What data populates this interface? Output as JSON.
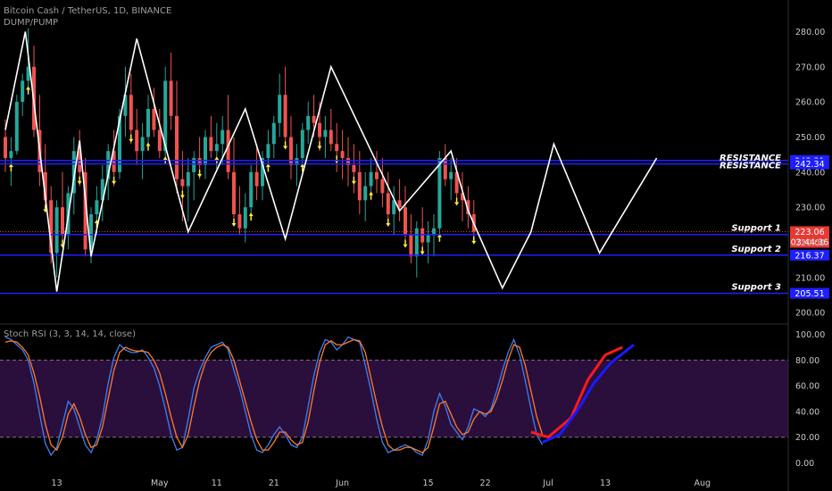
{
  "header": {
    "symbol_line": "Bitcoin Cash / TetherUS, 1D, BINANCE",
    "indicator_name": "DUMP/PUMP"
  },
  "rsi_panel": {
    "title": "Stoch RSI (3, 3, 14, 14, close)"
  },
  "colors": {
    "background": "#000000",
    "bull_candle": "#26a69a",
    "bear_candle": "#ef5350",
    "zigzag": "#ffffff",
    "level_line": "#1e1eff",
    "level_tag": "#1e1eff",
    "current_price_tag": "#e53935",
    "arrow": "#ffeb3b",
    "projection": "#ffffff",
    "k_line": "#3d7ff0",
    "d_line": "#ff7a29",
    "rsi_band": "#2a0f3d",
    "drawn_red": "#ff1a1a",
    "drawn_blue": "#1a1aff"
  },
  "chart_data": [
    {
      "type": "candlestick",
      "title": "Bitcoin Cash / TetherUS, 1D, BINANCE",
      "xlabel": "",
      "ylabel": "",
      "x_ticks": [
        "13",
        "May",
        "11",
        "21",
        "Jun",
        "15",
        "22",
        "Jul",
        "13",
        "Aug"
      ],
      "y_ticks": [
        200,
        210,
        220,
        230,
        240,
        250,
        260,
        270,
        280
      ],
      "ylim": [
        197,
        289
      ],
      "levels": [
        {
          "name": "RESISTANCE",
          "value": 243.31,
          "tag": "243.31"
        },
        {
          "name": "RESISTANCE",
          "value": 242.34,
          "tag": "242.34"
        },
        {
          "name": "Support 1",
          "value": 222.23,
          "tag": "222.23"
        },
        {
          "name": "Support 2",
          "value": 216.37,
          "tag": "216.37"
        },
        {
          "name": "Support 3",
          "value": 205.51,
          "tag": "205.51"
        }
      ],
      "current_price": {
        "value": 223.06,
        "tag": "223.06",
        "countdown": "03:44:36"
      },
      "zigzag": [
        [
          0,
          252
        ],
        [
          3.5,
          280
        ],
        [
          9,
          206
        ],
        [
          13,
          249
        ],
        [
          15,
          216
        ],
        [
          23,
          278
        ],
        [
          32,
          223
        ],
        [
          42,
          258
        ],
        [
          49,
          221
        ],
        [
          57,
          270
        ],
        [
          69,
          229
        ],
        [
          78,
          246
        ],
        [
          81,
          229
        ],
        [
          87,
          207
        ],
        [
          92,
          223
        ],
        [
          96,
          248
        ],
        [
          104,
          217
        ],
        [
          114,
          244
        ]
      ],
      "candles_ohlc": [
        [
          250,
          255,
          240,
          244
        ],
        [
          244,
          250,
          236,
          246
        ],
        [
          246,
          262,
          245,
          260
        ],
        [
          260,
          268,
          256,
          266
        ],
        [
          266,
          281,
          262,
          270
        ],
        [
          270,
          276,
          250,
          252
        ],
        [
          252,
          262,
          236,
          240
        ],
        [
          240,
          248,
          230,
          232
        ],
        [
          232,
          236,
          214,
          217
        ],
        [
          217,
          232,
          210,
          230
        ],
        [
          230,
          240,
          220,
          222
        ],
        [
          222,
          236,
          218,
          234
        ],
        [
          234,
          250,
          228,
          246
        ],
        [
          246,
          252,
          236,
          240
        ],
        [
          240,
          244,
          216,
          218
        ],
        [
          218,
          230,
          214,
          228
        ],
        [
          228,
          236,
          222,
          232
        ],
        [
          232,
          242,
          226,
          238
        ],
        [
          238,
          248,
          232,
          246
        ],
        [
          246,
          252,
          236,
          240
        ],
        [
          240,
          258,
          238,
          256
        ],
        [
          256,
          270,
          250,
          262
        ],
        [
          262,
          268,
          248,
          252
        ],
        [
          252,
          258,
          242,
          246
        ],
        [
          246,
          254,
          238,
          250
        ],
        [
          250,
          262,
          246,
          258
        ],
        [
          258,
          264,
          250,
          252
        ],
        [
          252,
          258,
          244,
          246
        ],
        [
          246,
          270,
          244,
          266
        ],
        [
          266,
          274,
          252,
          256
        ],
        [
          256,
          266,
          234,
          238
        ],
        [
          238,
          246,
          226,
          236
        ],
        [
          236,
          244,
          226,
          240
        ],
        [
          240,
          246,
          232,
          244
        ],
        [
          244,
          250,
          238,
          242
        ],
        [
          242,
          252,
          238,
          250
        ],
        [
          250,
          256,
          244,
          246
        ],
        [
          246,
          254,
          240,
          248
        ],
        [
          248,
          256,
          242,
          252
        ],
        [
          252,
          262,
          238,
          240
        ],
        [
          240,
          250,
          226,
          228
        ],
        [
          228,
          236,
          222,
          224
        ],
        [
          224,
          234,
          220,
          230
        ],
        [
          230,
          242,
          228,
          240
        ],
        [
          240,
          248,
          232,
          236
        ],
        [
          236,
          246,
          232,
          244
        ],
        [
          244,
          252,
          240,
          248
        ],
        [
          248,
          256,
          244,
          254
        ],
        [
          254,
          268,
          250,
          262
        ],
        [
          262,
          270,
          248,
          250
        ],
        [
          250,
          256,
          238,
          242
        ],
        [
          242,
          248,
          236,
          244
        ],
        [
          244,
          254,
          240,
          252
        ],
        [
          252,
          260,
          248,
          256
        ],
        [
          256,
          262,
          250,
          254
        ],
        [
          254,
          260,
          246,
          250
        ],
        [
          250,
          256,
          244,
          252
        ],
        [
          252,
          258,
          246,
          248
        ],
        [
          248,
          254,
          240,
          246
        ],
        [
          246,
          252,
          238,
          244
        ],
        [
          244,
          250,
          236,
          242
        ],
        [
          242,
          248,
          234,
          240
        ],
        [
          240,
          246,
          228,
          232
        ],
        [
          232,
          240,
          226,
          236
        ],
        [
          236,
          244,
          232,
          240
        ],
        [
          240,
          246,
          234,
          238
        ],
        [
          238,
          244,
          230,
          234
        ],
        [
          234,
          240,
          226,
          228
        ],
        [
          228,
          236,
          222,
          232
        ],
        [
          232,
          238,
          226,
          230
        ],
        [
          230,
          236,
          220,
          222
        ],
        [
          222,
          228,
          214,
          216
        ],
        [
          216,
          226,
          210,
          224
        ],
        [
          224,
          230,
          218,
          220
        ],
        [
          220,
          226,
          214,
          222
        ],
        [
          222,
          228,
          216,
          224
        ],
        [
          224,
          246,
          222,
          244
        ],
        [
          244,
          248,
          236,
          238
        ],
        [
          238,
          244,
          232,
          240
        ],
        [
          240,
          244,
          232,
          234
        ],
        [
          234,
          240,
          226,
          232
        ],
        [
          232,
          236,
          224,
          228
        ],
        [
          228,
          232,
          220,
          223
        ]
      ]
    },
    {
      "type": "line",
      "title": "Stoch RSI (3, 3, 14, 14, close)",
      "y_ticks": [
        0,
        20,
        40,
        60,
        80,
        100
      ],
      "ylim": [
        -8,
        106
      ],
      "band": [
        20,
        80
      ],
      "series": [
        {
          "name": "K",
          "values": [
            98,
            96,
            92,
            88,
            80,
            62,
            38,
            15,
            6,
            12,
            30,
            48,
            42,
            28,
            14,
            8,
            18,
            36,
            62,
            82,
            92,
            88,
            86,
            86,
            88,
            82,
            74,
            60,
            42,
            22,
            10,
            12,
            34,
            58,
            72,
            82,
            90,
            92,
            94,
            88,
            72,
            58,
            40,
            22,
            10,
            8,
            14,
            22,
            28,
            22,
            14,
            12,
            20,
            44,
            68,
            86,
            96,
            94,
            88,
            92,
            98,
            96,
            94,
            76,
            56,
            34,
            16,
            8,
            10,
            12,
            14,
            12,
            8,
            6,
            18,
            40,
            54,
            44,
            30,
            24,
            18,
            28,
            42,
            40,
            36,
            42,
            56,
            72,
            86,
            96,
            84,
            64,
            42,
            22,
            14
          ]
        },
        {
          "name": "D",
          "values": [
            94,
            95,
            94,
            90,
            84,
            70,
            52,
            30,
            14,
            10,
            20,
            38,
            46,
            36,
            22,
            12,
            14,
            28,
            50,
            72,
            86,
            90,
            88,
            87,
            87,
            86,
            80,
            70,
            54,
            36,
            20,
            12,
            22,
            44,
            64,
            78,
            86,
            90,
            92,
            90,
            80,
            64,
            48,
            32,
            18,
            10,
            10,
            16,
            24,
            24,
            18,
            14,
            16,
            32,
            56,
            78,
            92,
            95,
            92,
            92,
            94,
            96,
            95,
            86,
            66,
            46,
            28,
            14,
            10,
            10,
            12,
            12,
            10,
            8,
            12,
            28,
            46,
            48,
            38,
            28,
            22,
            24,
            34,
            40,
            38,
            40,
            50,
            64,
            80,
            92,
            90,
            76,
            56,
            36,
            22
          ]
        }
      ]
    }
  ]
}
